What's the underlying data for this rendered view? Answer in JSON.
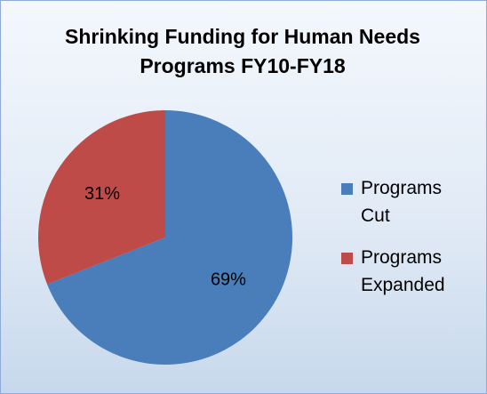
{
  "chart_data": {
    "type": "pie",
    "title": "Shrinking Funding for Human Needs Programs FY10-FY18",
    "categories": [
      "Programs Cut",
      "Programs Expanded"
    ],
    "values": [
      69,
      31
    ],
    "value_labels": [
      "69%",
      "31%"
    ],
    "colors": [
      "#4a7ebb",
      "#be4b48"
    ]
  }
}
